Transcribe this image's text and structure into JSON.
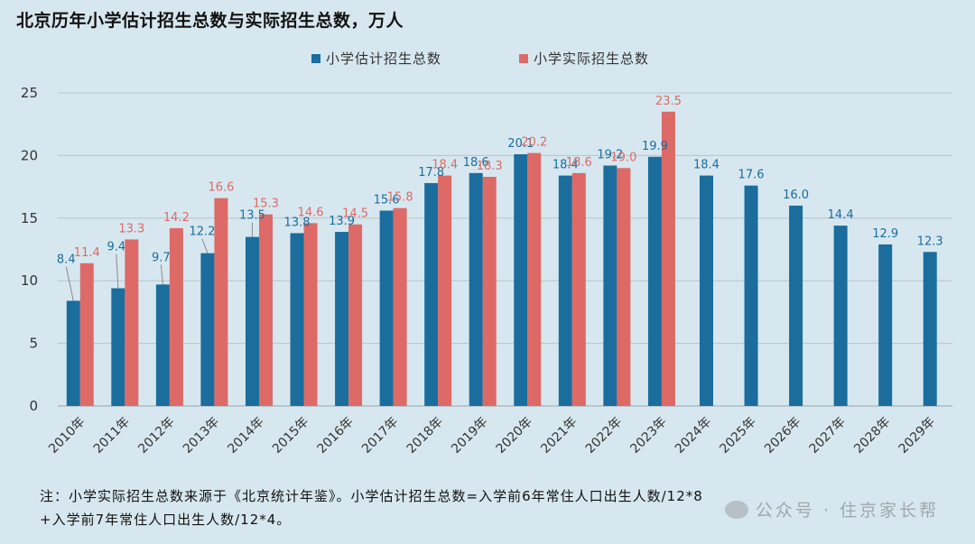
{
  "title": "北京历年小学估计招生总数与实际招生总数，万人",
  "note": {
    "line1": "注：小学实际招生总数来源于《北京统计年鉴》。小学估计招生总数=入学前6年常住人口出生人数/12*8",
    "line2": "+入学前7年常住人口出生人数/12*4。"
  },
  "watermark": "公众号 · 住京家长帮",
  "colors": {
    "estimated": "#1a6d9c",
    "actual": "#dd6a66",
    "grid": "#b8c4cb",
    "axis_text": "#333333"
  },
  "chart_data": {
    "type": "bar",
    "categories": [
      "2010年",
      "2011年",
      "2012年",
      "2013年",
      "2014年",
      "2015年",
      "2016年",
      "2017年",
      "2018年",
      "2019年",
      "2020年",
      "2021年",
      "2022年",
      "2023年",
      "2024年",
      "2025年",
      "2026年",
      "2027年",
      "2028年",
      "2029年"
    ],
    "series": [
      {
        "name": "小学估计招生总数",
        "values": [
          8.4,
          9.4,
          9.7,
          12.2,
          13.5,
          13.8,
          13.9,
          15.6,
          17.8,
          18.6,
          20.1,
          18.4,
          19.2,
          19.9,
          18.4,
          17.6,
          16.0,
          14.4,
          12.9,
          12.3
        ]
      },
      {
        "name": "小学实际招生总数",
        "values": [
          11.4,
          13.3,
          14.2,
          16.6,
          15.3,
          14.6,
          14.5,
          15.8,
          18.4,
          18.3,
          20.2,
          18.6,
          19.0,
          23.5,
          null,
          null,
          null,
          null,
          null,
          null
        ]
      }
    ],
    "yticks": [
      0,
      5,
      10,
      15,
      20,
      25
    ],
    "ylim": [
      0,
      25
    ],
    "grid": true,
    "legend": "top-center"
  }
}
